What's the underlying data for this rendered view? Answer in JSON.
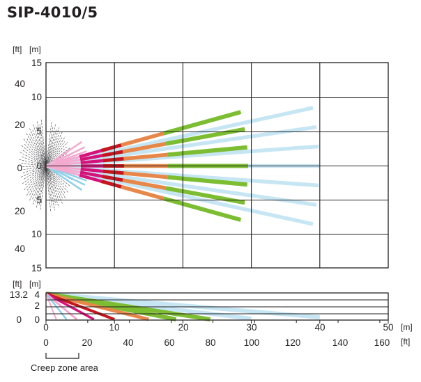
{
  "title": "SIP-4010/5",
  "units": {
    "ft": "[ft]",
    "m": "[m]"
  },
  "top_view": {
    "m_labels": [
      "15",
      "10",
      "5",
      "0",
      "5",
      "10",
      "15"
    ],
    "ft_labels": [
      "40",
      "20",
      "0",
      "20",
      "40"
    ]
  },
  "side_view": {
    "m_labels": [
      "4",
      "2",
      "0"
    ],
    "ft_labels": [
      "13.2",
      "0"
    ]
  },
  "x_axis": {
    "m_labels": [
      "0",
      "10",
      "20",
      "30",
      "40",
      "50"
    ],
    "ft_labels": [
      "0",
      "20",
      "40",
      "60",
      "80",
      "100",
      "120",
      "140",
      "160"
    ]
  },
  "creep_zone_label": "Creep zone area",
  "colors": {
    "grid": "#231f20",
    "creep_zone": "#58595b",
    "pink": "#f4a9cf",
    "blue_short": "#8fd0ea",
    "magenta": "#d6127a",
    "red": "#c4161c",
    "orange": "#e8874a",
    "green": "#7cbd32",
    "light_blue": "#c7e6f4"
  }
}
